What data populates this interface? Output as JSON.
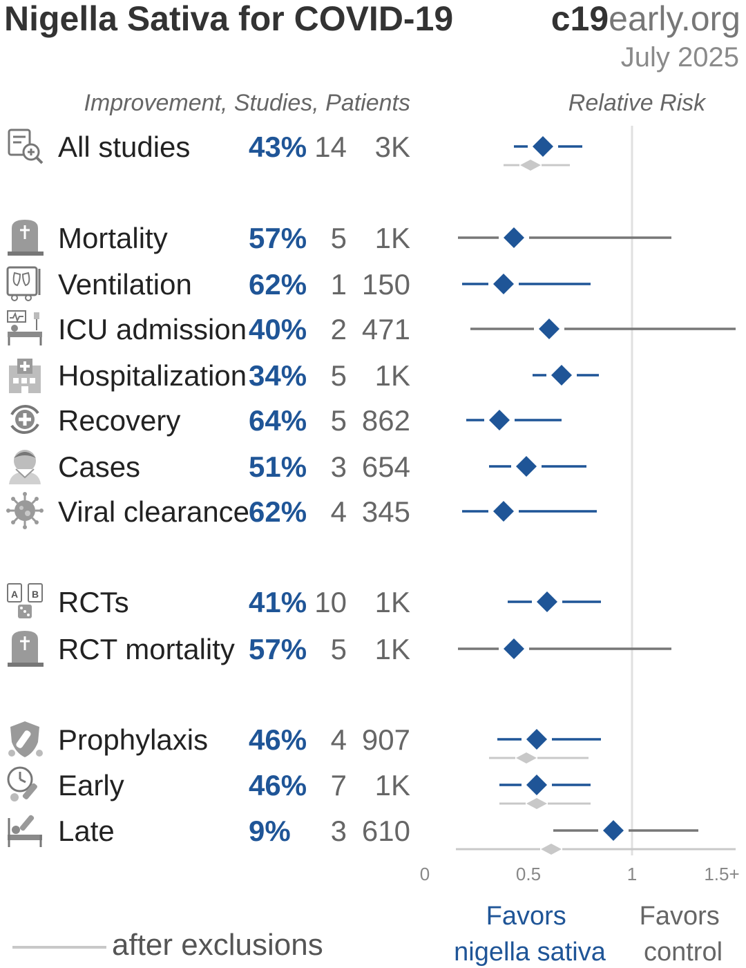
{
  "header": {
    "title": "Nigella Sativa for COVID-19",
    "brand_bold": "c19",
    "brand_light": "early",
    "brand_suffix": ".org",
    "date": "July 2025",
    "columns_label": "Improvement, Studies, Patients",
    "rr_label": "Relative Risk"
  },
  "colors": {
    "accent": "#1f5597",
    "ci_line_gray": "#777777",
    "exclusion_gray": "#c8c8c8",
    "reference_line": "#e0e0e0"
  },
  "chart_data": {
    "type": "forest",
    "xlabel": "Relative Risk",
    "xlim": [
      0,
      1.5
    ],
    "x_ticks": [
      {
        "value": 0,
        "label": "0"
      },
      {
        "value": 0.5,
        "label": "0.5"
      },
      {
        "value": 1,
        "label": "1"
      },
      {
        "value": 1.5,
        "label": "1.5+"
      }
    ],
    "reference_value": 1,
    "favors_left": [
      "Favors",
      "nigella sativa"
    ],
    "favors_right": [
      "Favors",
      "control"
    ],
    "legend_exclusion_label": "after exclusions",
    "rows": [
      {
        "label": "All studies",
        "icon": "magnifier-document-icon",
        "group": 0,
        "improvement": "43%",
        "studies": "14",
        "patients": "3K",
        "rr": 0.57,
        "ci": [
          0.43,
          0.76
        ],
        "color": "blue",
        "excl": {
          "rr": 0.51,
          "ci": [
            0.38,
            0.7
          ]
        }
      },
      {
        "label": "Mortality",
        "icon": "tombstone-icon",
        "group": 1,
        "improvement": "57%",
        "studies": "5",
        "patients": "1K",
        "rr": 0.43,
        "ci": [
          0.16,
          1.19
        ],
        "color": "gray"
      },
      {
        "label": "Ventilation",
        "icon": "ventilator-icon",
        "group": 1,
        "improvement": "62%",
        "studies": "1",
        "patients": "150",
        "rr": 0.38,
        "ci": [
          0.18,
          0.8
        ],
        "color": "blue"
      },
      {
        "label": "ICU admission",
        "icon": "icu-bed-icon",
        "group": 1,
        "improvement": "40%",
        "studies": "2",
        "patients": "471",
        "rr": 0.6,
        "ci": [
          0.22,
          1.5
        ],
        "color": "gray"
      },
      {
        "label": "Hospitalization",
        "icon": "hospital-icon",
        "group": 1,
        "improvement": "34%",
        "studies": "5",
        "patients": "1K",
        "rr": 0.66,
        "ci": [
          0.52,
          0.84
        ],
        "color": "blue"
      },
      {
        "label": "Recovery",
        "icon": "recovery-cycle-icon",
        "group": 1,
        "improvement": "64%",
        "studies": "5",
        "patients": "862",
        "rr": 0.36,
        "ci": [
          0.2,
          0.66
        ],
        "color": "blue"
      },
      {
        "label": "Cases",
        "icon": "sick-person-icon",
        "group": 1,
        "improvement": "51%",
        "studies": "3",
        "patients": "654",
        "rr": 0.49,
        "ci": [
          0.31,
          0.78
        ],
        "color": "blue"
      },
      {
        "label": "Viral clearance",
        "icon": "virus-icon",
        "group": 1,
        "improvement": "62%",
        "studies": "4",
        "patients": "345",
        "rr": 0.38,
        "ci": [
          0.18,
          0.83
        ],
        "color": "blue"
      },
      {
        "label": "RCTs",
        "icon": "ab-test-dice-icon",
        "group": 2,
        "improvement": "41%",
        "studies": "10",
        "patients": "1K",
        "rr": 0.59,
        "ci": [
          0.4,
          0.85
        ],
        "color": "blue"
      },
      {
        "label": "RCT mortality",
        "icon": "tombstone-icon",
        "group": 2,
        "improvement": "57%",
        "studies": "5",
        "patients": "1K",
        "rr": 0.43,
        "ci": [
          0.16,
          1.19
        ],
        "color": "gray"
      },
      {
        "label": "Prophylaxis",
        "icon": "shield-syringe-icon",
        "group": 3,
        "improvement": "46%",
        "studies": "4",
        "patients": "907",
        "rr": 0.54,
        "ci": [
          0.35,
          0.85
        ],
        "color": "blue",
        "excl": {
          "rr": 0.49,
          "ci": [
            0.31,
            0.79
          ]
        }
      },
      {
        "label": "Early",
        "icon": "clock-syringe-icon",
        "group": 3,
        "improvement": "46%",
        "studies": "7",
        "patients": "1K",
        "rr": 0.54,
        "ci": [
          0.36,
          0.8
        ],
        "color": "blue",
        "excl": {
          "rr": 0.54,
          "ci": [
            0.36,
            0.8
          ]
        }
      },
      {
        "label": "Late",
        "icon": "patient-bed-syringe-icon",
        "group": 3,
        "improvement": "9%",
        "studies": "3",
        "patients": "610",
        "rr": 0.91,
        "ci": [
          0.62,
          1.32
        ],
        "color": "gray",
        "excl": {
          "rr": 0.61,
          "ci": [
            0.15,
            1.5
          ]
        }
      }
    ]
  }
}
